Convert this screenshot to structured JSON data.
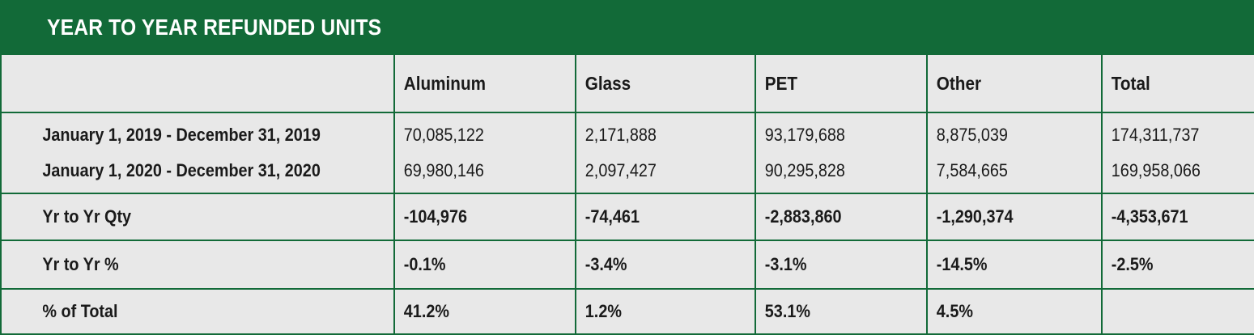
{
  "title": "YEAR TO YEAR REFUNDED UNITS",
  "colors": {
    "header_green": "#126a38",
    "cell_background": "#e8e8e8",
    "title_text": "#ffffff"
  },
  "columns": [
    "",
    "Aluminum",
    "Glass",
    "PET",
    "Other",
    "Total"
  ],
  "periods": {
    "labels": [
      "January 1, 2019 - December 31,  2019",
      "January 1, 2020 - December 31, 2020"
    ],
    "values": [
      [
        "70,085,122",
        "2,171,888",
        "93,179,688",
        "8,875,039",
        "174,311,737"
      ],
      [
        "69,980,146",
        "2,097,427",
        "90,295,828",
        "7,584,665",
        "169,958,066"
      ]
    ]
  },
  "rows": [
    {
      "label": "Yr to Yr Qty",
      "values": [
        "-104,976",
        "-74,461",
        "-2,883,860",
        "-1,290,374",
        "-4,353,671"
      ]
    },
    {
      "label": "Yr to Yr %",
      "values": [
        "-0.1%",
        "-3.4%",
        "-3.1%",
        "-14.5%",
        "-2.5%"
      ]
    },
    {
      "label": "% of Total",
      "values": [
        "41.2%",
        "1.2%",
        "53.1%",
        "4.5%",
        ""
      ]
    }
  ]
}
